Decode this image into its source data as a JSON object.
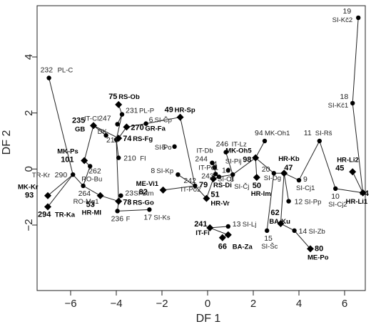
{
  "chart_data": {
    "type": "scatter",
    "title": "",
    "xlabel": "DF 1",
    "ylabel": "DF 2",
    "xlim": [
      -7.6,
      6.8
    ],
    "ylim": [
      -3.25,
      5.75
    ],
    "xticks": [
      -6,
      -4,
      -2,
      0,
      2,
      4,
      6
    ],
    "yticks": [
      -2,
      0,
      2,
      4
    ],
    "points": [
      {
        "id": "19",
        "x": 6.6,
        "y": 5.4,
        "label": "SI-Kč2",
        "marker": "circle",
        "bold": false
      },
      {
        "id": "18",
        "x": 6.35,
        "y": 2.35,
        "label": "SI-Kč1",
        "marker": "circle",
        "bold": false
      },
      {
        "id": "232",
        "x": -6.95,
        "y": 3.25,
        "label": "PL-C",
        "marker": "circle",
        "bold": false
      },
      {
        "id": "75",
        "x": -3.9,
        "y": 2.3,
        "label": "RS-Ob",
        "marker": "diamond",
        "bold": true
      },
      {
        "id": "231",
        "x": -3.75,
        "y": 1.95,
        "label": "PL-P",
        "marker": "circle",
        "bold": false
      },
      {
        "id": "6",
        "x": -2.7,
        "y": 1.62,
        "label": "SI-Čp",
        "marker": "circle",
        "bold": false
      },
      {
        "id": "49",
        "x": -1.2,
        "y": 1.85,
        "label": "HR-Sp",
        "marker": "diamond",
        "bold": true
      },
      {
        "id": "247",
        "x": -3.95,
        "y": 1.6,
        "label": "IT-CI",
        "marker": "circle",
        "bold": false
      },
      {
        "id": "235",
        "x": -5.0,
        "y": 1.55,
        "label": "GB",
        "marker": "diamond",
        "bold": true
      },
      {
        "id": "270",
        "x": -3.55,
        "y": 1.5,
        "label": "GR-Fa",
        "marker": "diamond",
        "bold": true
      },
      {
        "id": "DK",
        "x": -4.45,
        "y": 1.2,
        "label": "",
        "marker": "circle",
        "bold": false
      },
      {
        "id": "211",
        "x": -4.0,
        "y": 1.05,
        "label": "",
        "marker": "circle",
        "bold": false
      },
      {
        "id": "74",
        "x": -3.9,
        "y": 1.1,
        "label": "RS-Fg",
        "marker": "diamond",
        "bold": true
      },
      {
        "id": "210",
        "x": -3.9,
        "y": 0.4,
        "label": "FI",
        "marker": "circle",
        "bold": false
      },
      {
        "id": "MK-Ps",
        "x": -5.4,
        "y": 0.3,
        "label": "101",
        "marker": "diamond",
        "bold": true
      },
      {
        "id": "262",
        "x": -5.15,
        "y": 0.1,
        "label": "RO-Bu",
        "marker": "circle",
        "bold": false
      },
      {
        "id": "290",
        "x": -5.9,
        "y": -0.2,
        "label": "TR-Kr",
        "marker": "circle",
        "bold": false
      },
      {
        "id": "264",
        "x": -5.45,
        "y": -0.6,
        "label": "RO-Mg1",
        "marker": "circle",
        "bold": false
      },
      {
        "id": "MK-Kr",
        "x": -7.0,
        "y": -0.95,
        "label": "93",
        "marker": "diamond",
        "bold": true
      },
      {
        "id": "294",
        "x": -7.0,
        "y": -1.35,
        "label": "TR-Ka",
        "marker": "diamond",
        "bold": true
      },
      {
        "id": "53",
        "x": -4.7,
        "y": -0.95,
        "label": "HR-MI",
        "marker": "diamond",
        "bold": true
      },
      {
        "id": "23",
        "x": -3.8,
        "y": -0.95,
        "label": "SI-Ltm",
        "marker": "circle",
        "bold": false
      },
      {
        "id": "78",
        "x": -3.9,
        "y": -1.15,
        "label": "RS-Go",
        "marker": "diamond",
        "bold": true
      },
      {
        "id": "236",
        "x": -3.95,
        "y": -1.5,
        "label": "F",
        "marker": "circle",
        "bold": false
      },
      {
        "id": "17",
        "x": -2.55,
        "y": -1.45,
        "label": "SI-Ks",
        "marker": "circle",
        "bold": false
      },
      {
        "id": "5",
        "x": -1.45,
        "y": 0.8,
        "label": "SI-Po",
        "marker": "circle",
        "bold": false
      },
      {
        "id": "8",
        "x": -1.3,
        "y": -0.2,
        "label": "SI-Kp",
        "marker": "circle",
        "bold": false
      },
      {
        "id": "ME-Vi1",
        "x": -1.95,
        "y": -0.75,
        "label": "82",
        "marker": "diamond",
        "bold": true
      },
      {
        "id": "242",
        "x": -0.55,
        "y": -0.6,
        "label": "IT-Po2",
        "marker": "circle",
        "bold": false
      },
      {
        "id": "IT-Db",
        "x": 0.2,
        "y": 0.22,
        "label": "244",
        "marker": "circle",
        "bold": false
      },
      {
        "id": "4",
        "x": 0.3,
        "y": 0.05,
        "label": "",
        "marker": "circle",
        "bold": false
      },
      {
        "id": "IT-Po1",
        "x": 0.35,
        "y": -0.18,
        "label": "243",
        "marker": "circle",
        "bold": false
      },
      {
        "id": "16",
        "x": 0.5,
        "y": -0.28,
        "label": "SI-Ot",
        "marker": "circle",
        "bold": false
      },
      {
        "id": "79",
        "x": 0.25,
        "y": -0.35,
        "label": "RS-Di",
        "marker": "diamond",
        "bold": true
      },
      {
        "id": "246",
        "x": 0.8,
        "y": 0.6,
        "label": "IT-Lz",
        "marker": "circle",
        "bold": false
      },
      {
        "id": "SI-Pij",
        "x": 0.9,
        "y": -0.05,
        "label": "",
        "marker": "circle",
        "bold": false
      },
      {
        "id": "3",
        "x": 1.1,
        "y": -0.2,
        "label": "SI-Čj",
        "marker": "circle",
        "bold": false
      },
      {
        "id": "51",
        "x": -0.05,
        "y": -1.05,
        "label": "HR-Vr",
        "marker": "diamond",
        "bold": true
      },
      {
        "id": "94",
        "x": 2.5,
        "y": 1.0,
        "label": "MK-Oh1",
        "marker": "circle",
        "bold": false
      },
      {
        "id": "98",
        "x": 2.1,
        "y": 0.4,
        "label": "MK-Oh5",
        "marker": "diamond",
        "bold": true
      },
      {
        "id": "50",
        "x": 2.15,
        "y": -0.3,
        "label": "HR-Im",
        "marker": "diamond",
        "bold": true
      },
      {
        "id": "SI-Dg",
        "x": 2.9,
        "y": -0.15,
        "label": "20",
        "marker": "circle",
        "bold": false
      },
      {
        "id": "HR-Kb",
        "x": 3.35,
        "y": -0.15,
        "label": "47",
        "marker": "diamond",
        "bold": true
      },
      {
        "id": "9",
        "x": 4.0,
        "y": -0.4,
        "label": "SI-Cj1",
        "marker": "circle",
        "bold": false
      },
      {
        "id": "11",
        "x": 4.9,
        "y": 1.0,
        "label": "SI-Rš",
        "marker": "circle",
        "bold": false
      },
      {
        "id": "12",
        "x": 3.55,
        "y": -1.15,
        "label": "SI-Pp",
        "marker": "circle",
        "bold": false
      },
      {
        "id": "10",
        "x": 5.6,
        "y": -0.7,
        "label": "SI-Cj2",
        "marker": "circle",
        "bold": false
      },
      {
        "id": "HR-Li2",
        "x": 6.35,
        "y": -0.1,
        "label": "45",
        "marker": "diamond",
        "bold": true
      },
      {
        "id": "44",
        "x": 6.8,
        "y": -0.85,
        "label": "HR-Li1",
        "marker": "diamond",
        "bold": true
      },
      {
        "id": "62",
        "x": 3.2,
        "y": -1.95,
        "label": "BA-Ku",
        "marker": "diamond",
        "bold": true
      },
      {
        "id": "14",
        "x": 3.8,
        "y": -2.2,
        "label": "SI-Zb",
        "marker": "circle",
        "bold": false
      },
      {
        "id": "15",
        "x": 2.6,
        "y": -2.2,
        "label": "SI-Šc",
        "marker": "circle",
        "bold": false
      },
      {
        "id": "80",
        "x": 4.5,
        "y": -2.85,
        "label": "ME-Po",
        "marker": "diamond",
        "bold": true
      },
      {
        "id": "241",
        "x": 0.1,
        "y": -2.1,
        "label": "IT-Fi",
        "marker": "diamond",
        "bold": true
      },
      {
        "id": "13",
        "x": 0.9,
        "y": -2.05,
        "label": "SI-Lj",
        "marker": "circle",
        "bold": false
      },
      {
        "id": "BA-Bl",
        "x": 0.9,
        "y": -2.35,
        "label": "",
        "marker": "diamond",
        "bold": true
      },
      {
        "id": "66",
        "x": 0.65,
        "y": -2.45,
        "label": "BA-Za",
        "marker": "diamond",
        "bold": true
      }
    ],
    "links": [
      [
        "19",
        "18"
      ],
      [
        "18",
        "44"
      ],
      [
        "44",
        "10"
      ],
      [
        "10",
        "11"
      ],
      [
        "11",
        "9"
      ],
      [
        "44",
        "HR-Li2"
      ],
      [
        "9",
        "HR-Kb"
      ],
      [
        "HR-Kb",
        "12"
      ],
      [
        "HR-Kb",
        "62"
      ],
      [
        "HR-Kb",
        "SI-Dg"
      ],
      [
        "SI-Dg",
        "15"
      ],
      [
        "62",
        "14"
      ],
      [
        "14",
        "80"
      ],
      [
        "98",
        "94"
      ],
      [
        "98",
        "50"
      ],
      [
        "98",
        "SI-Dg"
      ],
      [
        "98",
        "3"
      ],
      [
        "3",
        "246"
      ],
      [
        "3",
        "16"
      ],
      [
        "16",
        "79"
      ],
      [
        "79",
        "IT-Po1"
      ],
      [
        "79",
        "51"
      ],
      [
        "51",
        "242"
      ],
      [
        "242",
        "49"
      ],
      [
        "242",
        "ME-Vi1"
      ],
      [
        "242",
        "8"
      ],
      [
        "49",
        "6"
      ],
      [
        "6",
        "270"
      ],
      [
        "270",
        "74"
      ],
      [
        "74",
        "235"
      ],
      [
        "75",
        "231"
      ],
      [
        "231",
        "211"
      ],
      [
        "231",
        "247"
      ],
      [
        "211",
        "210"
      ],
      [
        "211",
        "78"
      ],
      [
        "78",
        "236"
      ],
      [
        "236",
        "17"
      ],
      [
        "78",
        "23"
      ],
      [
        "78",
        "53"
      ],
      [
        "235",
        "DK"
      ],
      [
        "235",
        "MK-Ps"
      ],
      [
        "MK-Ps",
        "262"
      ],
      [
        "262",
        "264"
      ],
      [
        "264",
        "290"
      ],
      [
        "290",
        "232"
      ],
      [
        "290",
        "MK-Kr"
      ],
      [
        "290",
        "294"
      ],
      [
        "264",
        "53"
      ],
      [
        "241",
        "13"
      ],
      [
        "241",
        "BA-Bl"
      ],
      [
        "BA-Bl",
        "66"
      ],
      [
        "IT-Db",
        "4"
      ],
      [
        "4",
        "IT-Po1"
      ]
    ]
  },
  "labels": {
    "title": "",
    "xlabel": "DF 1",
    "ylabel": "DF 2"
  }
}
